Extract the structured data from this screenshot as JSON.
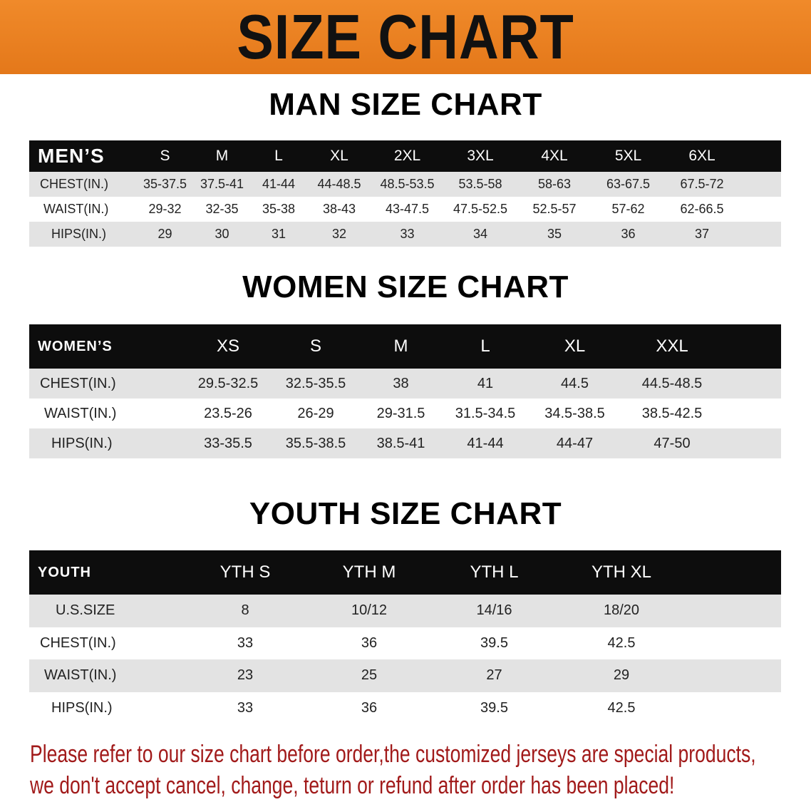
{
  "title": "SIZE CHART",
  "men": {
    "section_title": "MAN SIZE CHART",
    "header": "MEN’S",
    "sizes": [
      "S",
      "M",
      "L",
      "XL",
      "2XL",
      "3XL",
      "4XL",
      "5XL",
      "6XL"
    ],
    "rows": [
      {
        "label": "CHEST(IN.)",
        "values": [
          "35-37.5",
          "37.5-41",
          "41-44",
          "44-48.5",
          "48.5-53.5",
          "53.5-58",
          "58-63",
          "63-67.5",
          "67.5-72"
        ]
      },
      {
        "label": "WAIST(IN.)",
        "values": [
          "29-32",
          "32-35",
          "35-38",
          "38-43",
          "43-47.5",
          "47.5-52.5",
          "52.5-57",
          "57-62",
          "62-66.5"
        ]
      },
      {
        "label": "HIPS(IN.)",
        "values": [
          "29",
          "30",
          "31",
          "32",
          "33",
          "34",
          "35",
          "36",
          "37"
        ]
      }
    ]
  },
  "women": {
    "section_title": "WOMEN SIZE CHART",
    "header": "WOMEN’S",
    "sizes": [
      "XS",
      "S",
      "M",
      "L",
      "XL",
      "XXL"
    ],
    "rows": [
      {
        "label": "CHEST(IN.)",
        "values": [
          "29.5-32.5",
          "32.5-35.5",
          "38",
          "41",
          "44.5",
          "44.5-48.5"
        ]
      },
      {
        "label": "WAIST(IN.)",
        "values": [
          "23.5-26",
          "26-29",
          "29-31.5",
          "31.5-34.5",
          "34.5-38.5",
          "38.5-42.5"
        ]
      },
      {
        "label": "HIPS(IN.)",
        "values": [
          "33-35.5",
          "35.5-38.5",
          "38.5-41",
          "41-44",
          "44-47",
          "47-50"
        ]
      }
    ]
  },
  "youth": {
    "section_title": "YOUTH SIZE CHART",
    "header": "YOUTH",
    "sizes": [
      "YTH S",
      "YTH M",
      "YTH L",
      "YTH XL"
    ],
    "rows": [
      {
        "label": "U.S.SIZE",
        "values": [
          "8",
          "10/12",
          "14/16",
          "18/20"
        ]
      },
      {
        "label": "CHEST(IN.)",
        "values": [
          "33",
          "36",
          "39.5",
          "42.5"
        ]
      },
      {
        "label": "WAIST(IN.)",
        "values": [
          "23",
          "25",
          "27",
          "29"
        ]
      },
      {
        "label": "HIPS(IN.)",
        "values": [
          "33",
          "36",
          "39.5",
          "42.5"
        ]
      }
    ]
  },
  "note": {
    "line1": "Please refer to our size chart before order,the customized jerseys are special products,",
    "line2": "we don't accept cancel, change, teturn or refund after order has been placed!"
  },
  "colors": {
    "banner": "#e87d1e",
    "header_bg": "#0d0d0d",
    "row_shade": "#e3e3e3",
    "note": "#a11a1a"
  }
}
